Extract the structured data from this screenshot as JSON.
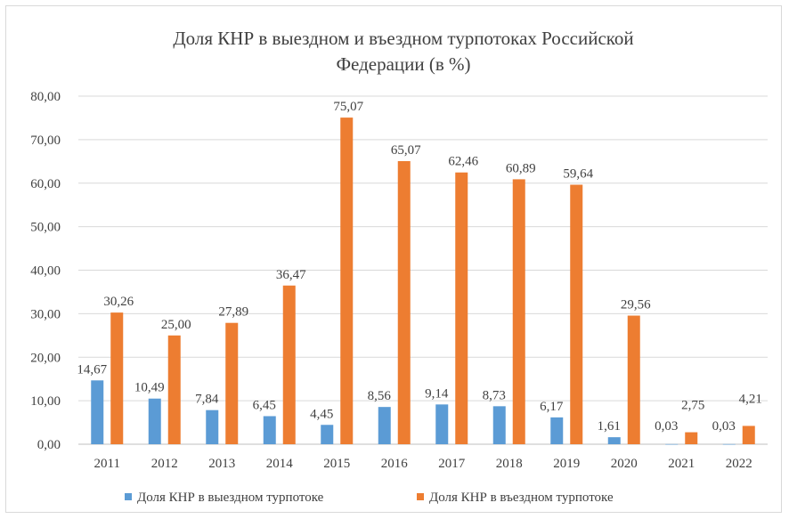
{
  "chart_data": {
    "type": "bar",
    "title_line1": "Доля КНР в выездном и въездном турпотоках Российской",
    "title_line2": "Федерации (в %)",
    "categories": [
      "2011",
      "2012",
      "2013",
      "2014",
      "2015",
      "2016",
      "2017",
      "2018",
      "2019",
      "2020",
      "2021",
      "2022"
    ],
    "series": [
      {
        "name": "Доля КНР в выездном турпотоке",
        "color": "#5b9bd5",
        "values": [
          14.67,
          10.49,
          7.84,
          6.45,
          4.45,
          8.56,
          9.14,
          8.73,
          6.17,
          1.61,
          0.03,
          0.03
        ],
        "labels": [
          "14,67",
          "10,49",
          "7,84",
          "6,45",
          "4,45",
          "8,56",
          "9,14",
          "8,73",
          "6,17",
          "1,61",
          "0,03",
          "0,03"
        ]
      },
      {
        "name": "Доля КНР в въездном турпотоке",
        "color": "#ed7d31",
        "values": [
          30.26,
          25.0,
          27.89,
          36.47,
          75.07,
          65.07,
          62.46,
          60.89,
          59.64,
          29.56,
          2.75,
          4.21
        ],
        "labels": [
          "30,26",
          "25,00",
          "27,89",
          "36,47",
          "75,07",
          "65,07",
          "62,46",
          "60,89",
          "59,64",
          "29,56",
          "2,75",
          "4,21"
        ]
      }
    ],
    "yticks": [
      "0,00",
      "10,00",
      "20,00",
      "30,00",
      "40,00",
      "50,00",
      "60,00",
      "70,00",
      "80,00"
    ],
    "ylim": [
      0,
      80
    ],
    "grid": true,
    "legend_position": "bottom"
  }
}
